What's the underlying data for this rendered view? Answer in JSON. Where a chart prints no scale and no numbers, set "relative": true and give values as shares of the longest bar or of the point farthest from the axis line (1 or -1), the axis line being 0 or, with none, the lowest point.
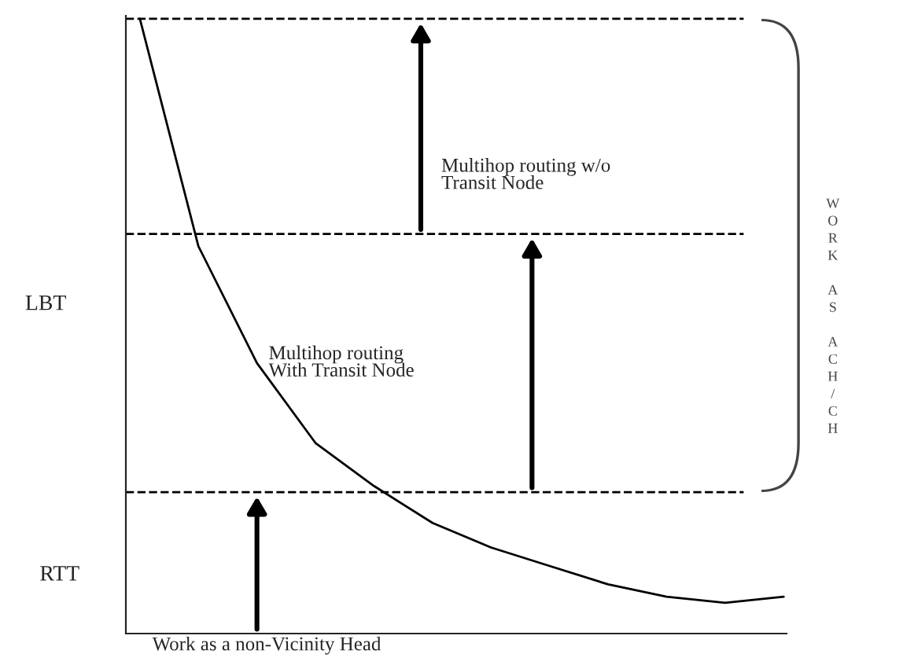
{
  "chart_data": {
    "type": "line",
    "relative": true,
    "categories": [
      null,
      null,
      null,
      null,
      null,
      null,
      null,
      null,
      null,
      null,
      null,
      null
    ],
    "series": [
      {
        "color": "#000000",
        "values": [
          1.0,
          0.63,
          0.44,
          0.31,
          0.24,
          0.18,
          0.14,
          0.11,
          0.08,
          0.06,
          0.05,
          0.06
        ]
      }
    ],
    "xlabel": "Work as a non-Vicinity Head",
    "ref_lines": [
      {
        "axis": "y",
        "value": 1.0,
        "color": "#000000",
        "line_style": "dashed"
      },
      {
        "axis": "y",
        "value": 0.65,
        "color": "#000000",
        "line_style": "dashed"
      },
      {
        "axis": "y",
        "value": 0.23,
        "color": "#000000",
        "line_style": "dashed"
      }
    ],
    "annotations": [
      "LBT",
      "RTT",
      "Multihop routing w/o\nTransit Node",
      "Multihop routing\nWith Transit Node",
      "WORK AS ACH/CH"
    ],
    "grid": false,
    "legend": false,
    "marker": "none",
    "line_style": "solid"
  }
}
